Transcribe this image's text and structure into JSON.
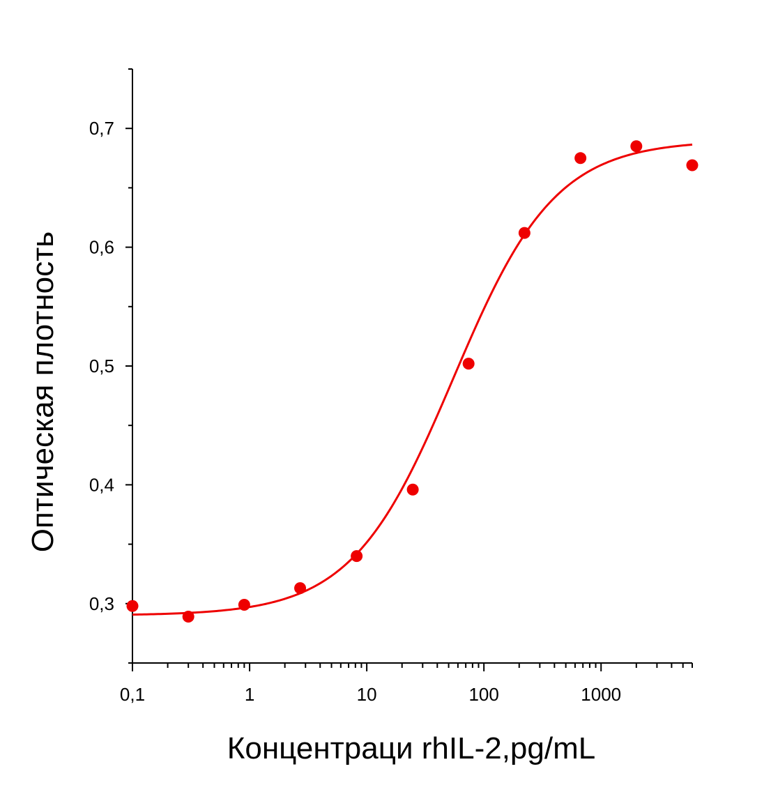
{
  "chart_data": {
    "type": "scatter",
    "title": "",
    "xlabel": "Концентраци rhIL-2,pg/mL",
    "ylabel": "Оптическая плотность",
    "xscale": "log",
    "xlim": [
      0.1,
      6000
    ],
    "ylim": [
      0.25,
      0.75
    ],
    "grid": false,
    "x_ticks": [
      {
        "value": 0.1,
        "label": "0,1"
      },
      {
        "value": 1,
        "label": "1"
      },
      {
        "value": 10,
        "label": "10"
      },
      {
        "value": 100,
        "label": "100"
      },
      {
        "value": 1000,
        "label": "1000"
      }
    ],
    "y_ticks": [
      {
        "value": 0.3,
        "label": "0,3"
      },
      {
        "value": 0.4,
        "label": "0,4"
      },
      {
        "value": 0.5,
        "label": "0,5"
      },
      {
        "value": 0.6,
        "label": "0,6"
      },
      {
        "value": 0.7,
        "label": "0,7"
      }
    ],
    "series": [
      {
        "name": "data",
        "color": "#ee0000",
        "marker": "circle",
        "x": [
          0.1,
          0.3,
          0.9,
          2.7,
          8.2,
          24.7,
          74,
          222,
          667,
          2000,
          6000
        ],
        "y": [
          0.298,
          0.289,
          0.299,
          0.313,
          0.34,
          0.396,
          0.502,
          0.612,
          0.675,
          0.685,
          0.669
        ]
      },
      {
        "name": "fit",
        "color": "#ee0000",
        "type": "line",
        "model": "4PL",
        "params": {
          "bottom": 0.29,
          "top": 0.69,
          "ec50": 55,
          "hill": 1.0
        },
        "x_range": [
          0.1,
          6000
        ]
      }
    ]
  }
}
